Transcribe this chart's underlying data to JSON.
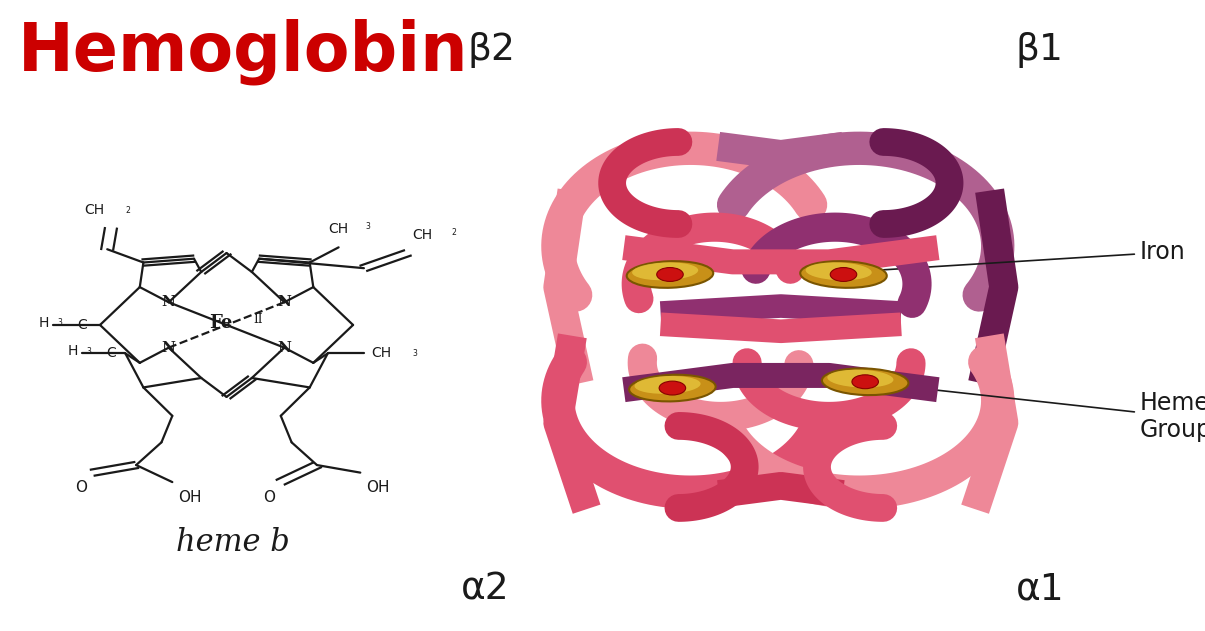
{
  "title": "Hemoglobin",
  "title_color": "#CC0000",
  "title_fontsize": 48,
  "background_color": "#FFFFFF",
  "heme_label": "heme b",
  "heme_label_fontsize": 22,
  "annotation_iron": "Iron",
  "annotation_heme_group": "Heme\nGroup",
  "annotation_fontsize": 17,
  "pink_color": "#E05070",
  "pink_light": "#EE8898",
  "pink_mid": "#CC3355",
  "pink_dark": "#B02040",
  "purple_color": "#903070",
  "purple_dark": "#6A1A50",
  "purple_light": "#B06090",
  "purple_mid": "#7A2560",
  "heme_disk_outer": "#C89018",
  "heme_disk_inner": "#E8C840",
  "iron_dot_color": "#CC1010",
  "line_color": "#1a1a1a",
  "lw_chem": 1.6
}
